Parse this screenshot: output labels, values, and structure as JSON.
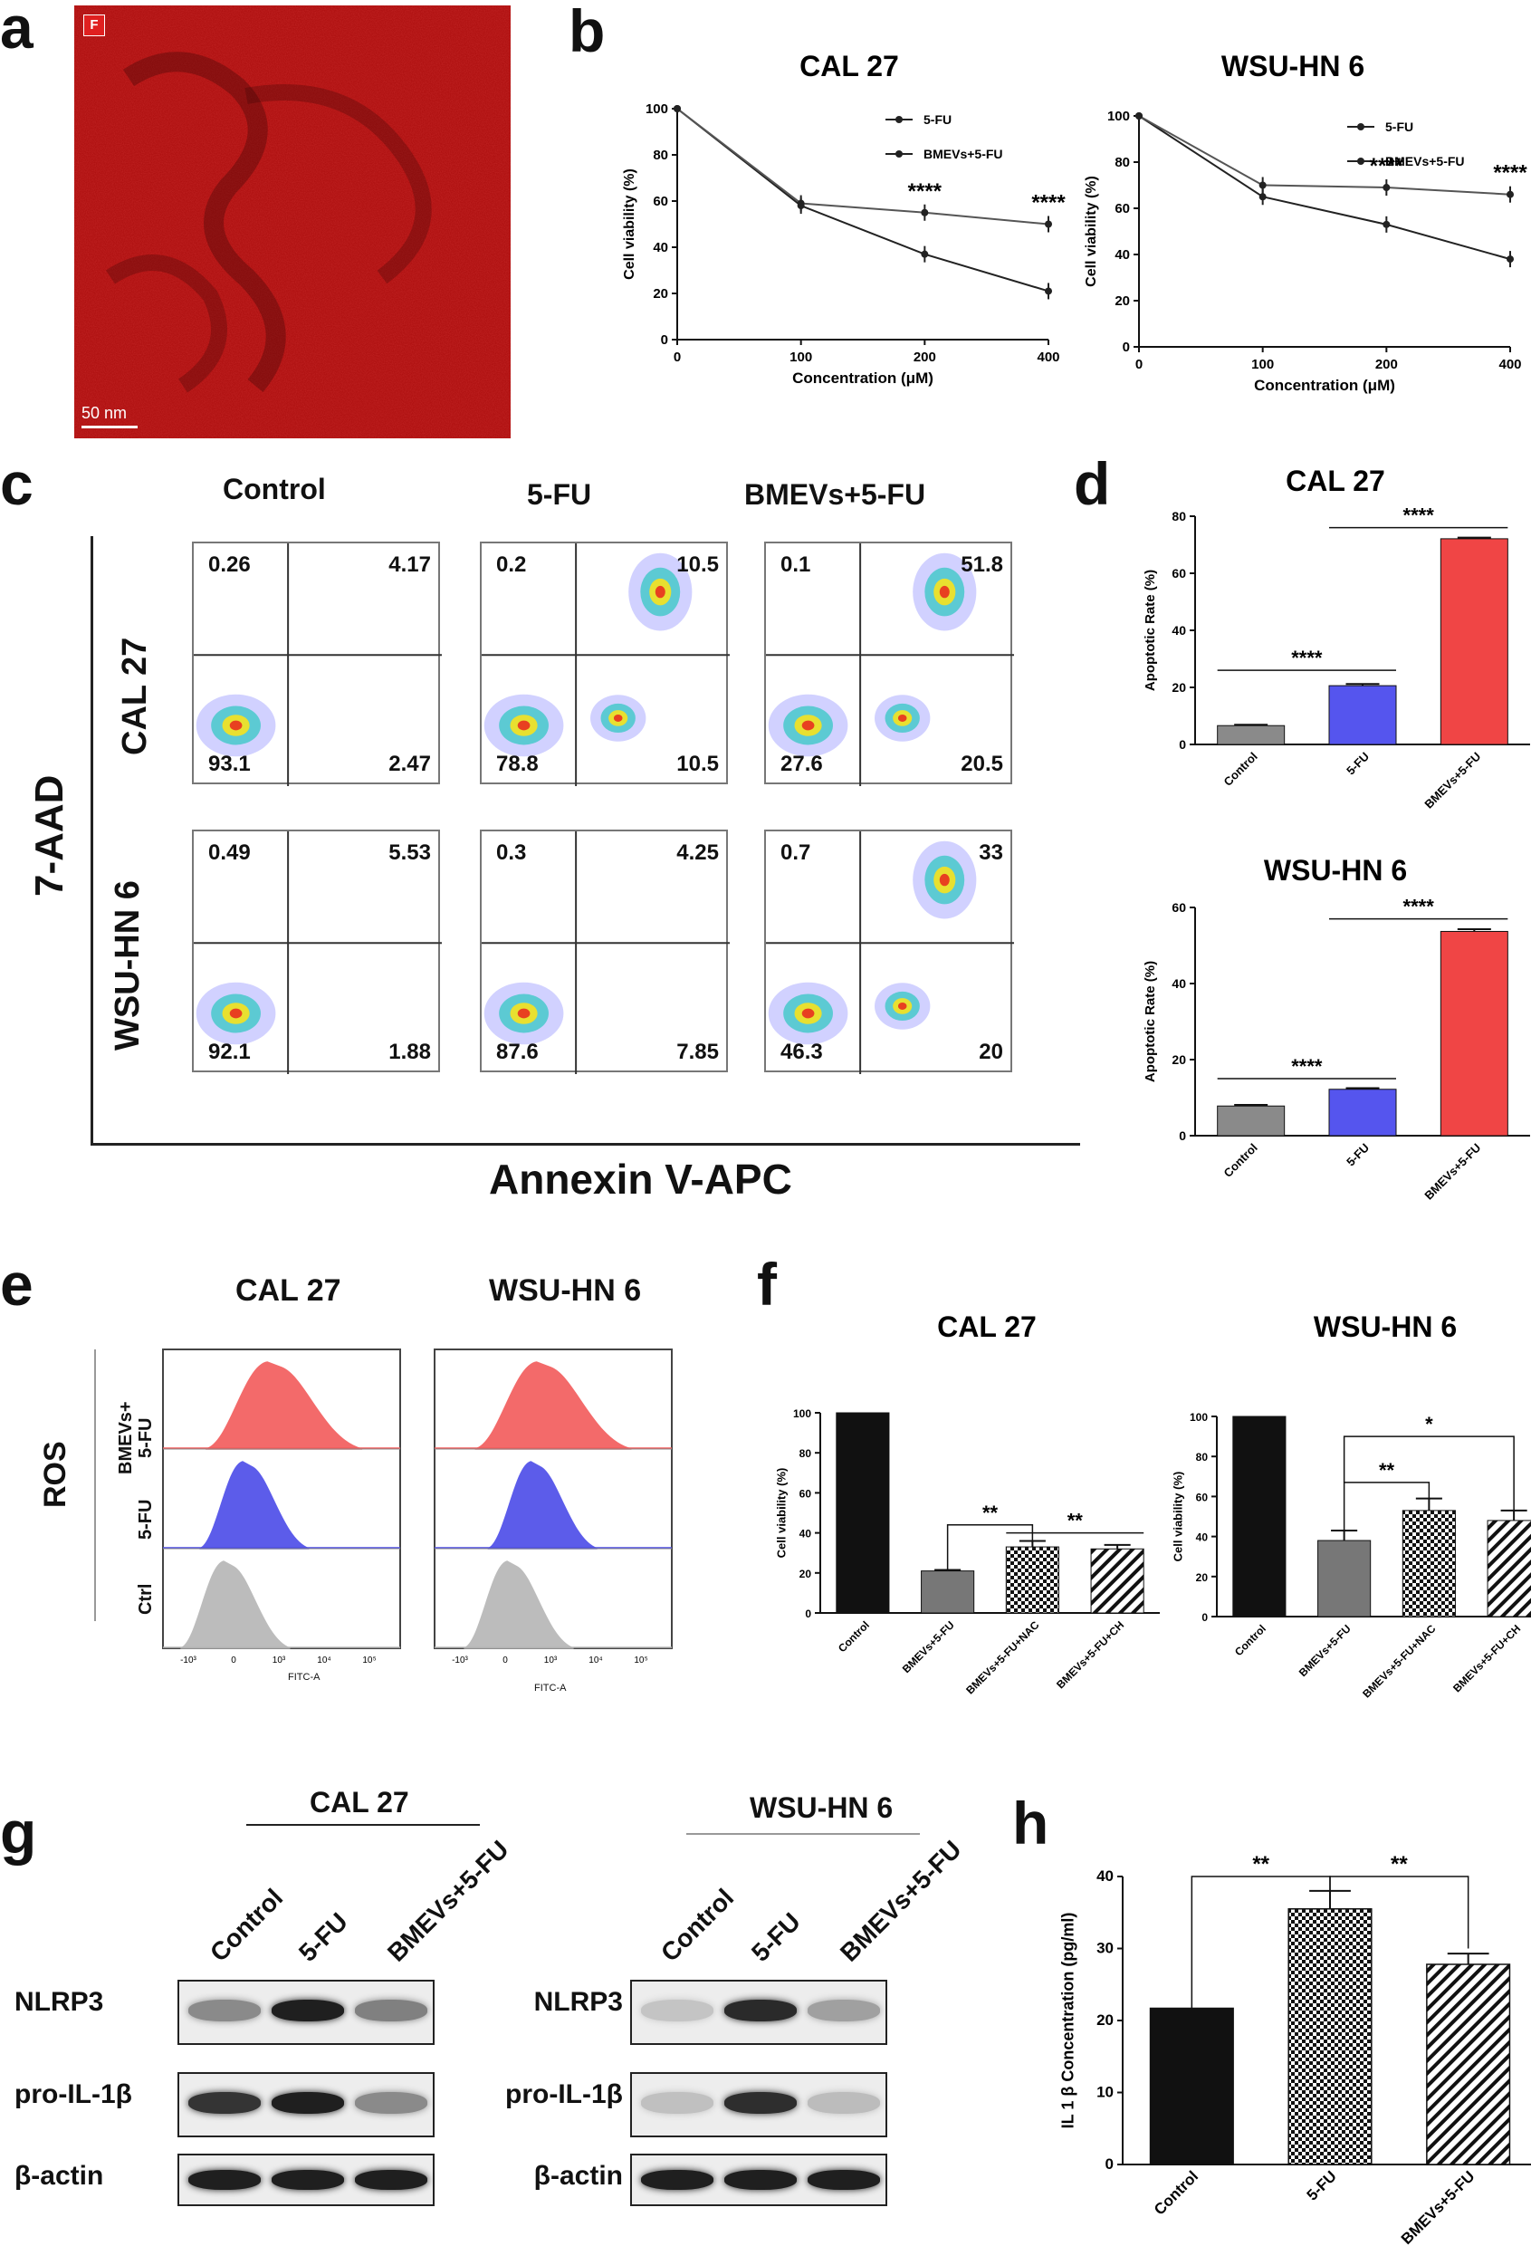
{
  "panels": {
    "a": "a",
    "b": "b",
    "c": "c",
    "d": "d",
    "e": "e",
    "f": "f",
    "g": "g",
    "h": "h"
  },
  "colors": {
    "red": "#f04545",
    "blue": "#5555ee",
    "gray": "#888888",
    "dark": "#111111",
    "ros_red": "#f25a5a",
    "ros_blue": "#4b4be8",
    "ros_gray": "#b5b5b5"
  },
  "panel_a": {
    "badge": "F",
    "scale": "50 nm"
  },
  "panel_c": {
    "columns": [
      "Control",
      "5-FU",
      "BMEVs+5-FU"
    ],
    "rows": [
      "CAL 27",
      "WSU-HN 6"
    ],
    "y_axis": "7-AAD",
    "x_axis": "Annexin V-APC",
    "quadrants": [
      [
        [
          "0.26",
          "4.17",
          "93.1",
          "2.47"
        ],
        [
          "0.2",
          "10.5",
          "78.8",
          "10.5"
        ],
        [
          "0.1",
          "51.8",
          "27.6",
          "20.5"
        ]
      ],
      [
        [
          "0.49",
          "5.53",
          "92.1",
          "1.88"
        ],
        [
          "0.3",
          "4.25",
          "87.6",
          "7.85"
        ],
        [
          "0.7",
          "33",
          "46.3",
          "20"
        ]
      ]
    ]
  },
  "panel_e": {
    "columns": [
      "CAL 27",
      "WSU-HN 6"
    ],
    "y_label": "ROS",
    "rows": [
      "BMEVs+\n5-FU",
      "5-FU",
      "Ctrl"
    ],
    "x_label": "FITC-A"
  },
  "panel_g": {
    "cells": [
      "CAL 27",
      "WSU-HN 6"
    ],
    "lanes": [
      "Control",
      "5-FU",
      "BMEVs+5-FU"
    ],
    "proteins": [
      "NLRP3",
      "pro-IL-1β",
      "β-actin"
    ]
  },
  "chart_data": [
    {
      "id": "b1",
      "type": "line",
      "title": "CAL 27",
      "xlabel": "Concentration (μM)",
      "ylabel": "Cell viability (%)",
      "x": [
        "0",
        "100",
        "200",
        "400"
      ],
      "ylim": [
        0,
        100
      ],
      "yticks": [
        0,
        20,
        40,
        60,
        80,
        100
      ],
      "series": [
        {
          "name": "5-FU",
          "values": [
            100,
            58,
            37,
            21
          ]
        },
        {
          "name": "BMEVs+5-FU",
          "values": [
            100,
            59,
            55,
            50
          ]
        }
      ],
      "annotations": [
        "****",
        "****"
      ]
    },
    {
      "id": "b2",
      "type": "line",
      "title": "WSU-HN 6",
      "xlabel": "Concentration (μM)",
      "ylabel": "Cell viability (%)",
      "x": [
        "0",
        "100",
        "200",
        "400"
      ],
      "ylim": [
        0,
        100
      ],
      "yticks": [
        0,
        20,
        40,
        60,
        80,
        100
      ],
      "series": [
        {
          "name": "5-FU",
          "values": [
            100,
            65,
            53,
            38
          ]
        },
        {
          "name": "BMEVs+5-FU",
          "values": [
            100,
            70,
            69,
            66
          ]
        }
      ],
      "annotations": [
        "****",
        "****"
      ]
    },
    {
      "id": "d1",
      "type": "bar",
      "title": "CAL 27",
      "ylabel": "Apoptotic Rate (%)",
      "ylim": [
        0,
        80
      ],
      "yticks": [
        0,
        20,
        40,
        60,
        80
      ],
      "categories": [
        "Control",
        "5-FU",
        "BMEVs+5-FU"
      ],
      "values": [
        6.6,
        20.6,
        72.1
      ],
      "annotations": [
        "****",
        "****"
      ]
    },
    {
      "id": "d2",
      "type": "bar",
      "title": "WSU-HN 6",
      "ylabel": "Apoptotic Rate (%)",
      "ylim": [
        0,
        60
      ],
      "yticks": [
        0,
        20,
        40,
        60
      ],
      "categories": [
        "Control",
        "5-FU",
        "BMEVs+5-FU"
      ],
      "values": [
        7.8,
        12.2,
        53.7
      ],
      "annotations": [
        "****",
        "****"
      ]
    },
    {
      "id": "f1",
      "type": "bar",
      "title": "CAL 27",
      "ylabel": "Cell viability (%)",
      "ylim": [
        0,
        100
      ],
      "yticks": [
        0,
        20,
        40,
        60,
        80,
        100
      ],
      "categories": [
        "Control",
        "BMEVs+5-FU",
        "BMEVs+5-FU+NAC",
        "BMEVs+5-FU+CH"
      ],
      "values": [
        100,
        21,
        33,
        32
      ],
      "annotations": [
        "**"
      ]
    },
    {
      "id": "f2",
      "type": "bar",
      "title": "WSU-HN 6",
      "ylabel": "Cell viability (%)",
      "ylim": [
        0,
        100
      ],
      "yticks": [
        0,
        20,
        40,
        60,
        80,
        100
      ],
      "categories": [
        "Control",
        "BMEVs+5-FU",
        "BMEVs+5-FU+NAC",
        "BMEVs+5-FU+CH"
      ],
      "values": [
        100,
        38,
        53,
        48
      ],
      "annotations": [
        "**",
        "*"
      ]
    },
    {
      "id": "h",
      "type": "bar",
      "ylabel": "IL 1 β Concentration (pg/ml)",
      "ylim": [
        0,
        40
      ],
      "yticks": [
        0,
        10,
        20,
        30,
        40
      ],
      "categories": [
        "Control",
        "5-FU",
        "BMEVs+5-FU"
      ],
      "values": [
        21.7,
        35.5,
        27.8
      ],
      "annotations": [
        "**",
        "**"
      ]
    }
  ]
}
